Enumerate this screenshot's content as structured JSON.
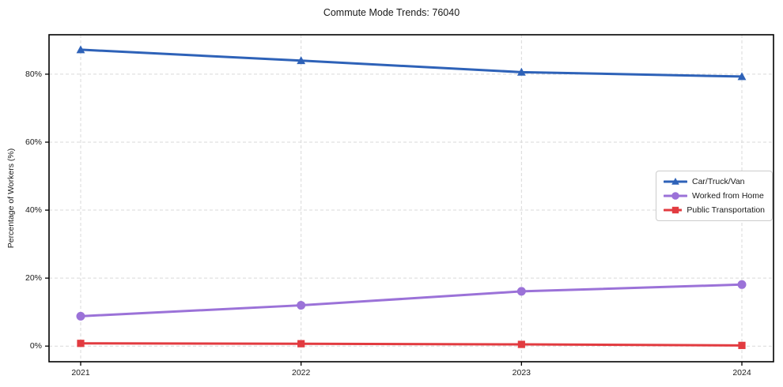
{
  "title": "Commute Mode Trends: 76040",
  "chart_data": {
    "type": "line",
    "title": "Commute Mode Trends: 76040",
    "xlabel": "",
    "ylabel": "Percentage of Workers (%)",
    "categories": [
      "2021",
      "2022",
      "2023",
      "2024"
    ],
    "yticks": [
      0,
      20,
      40,
      60,
      80
    ],
    "ytick_labels": [
      "0%",
      "20%",
      "40%",
      "60%",
      "80%"
    ],
    "ylim": [
      -4.6,
      91.6
    ],
    "grid": true,
    "grid_style": "dashed",
    "legend_position": "center-right",
    "series": [
      {
        "name": "Car/Truck/Van",
        "marker": "triangle",
        "color": "#2e62b8",
        "values": [
          87.2,
          84.0,
          80.6,
          79.3
        ]
      },
      {
        "name": "Worked from Home",
        "marker": "circle",
        "color": "#9b72d8",
        "values": [
          8.8,
          12.0,
          16.1,
          18.1
        ]
      },
      {
        "name": "Public Transportation",
        "marker": "square",
        "color": "#e23b40",
        "values": [
          0.8,
          0.7,
          0.5,
          0.2
        ]
      }
    ],
    "colors": {
      "grid": "#d9d9d9",
      "axis": "#000000",
      "text": "#1a1a1a",
      "background": "#ffffff"
    }
  }
}
